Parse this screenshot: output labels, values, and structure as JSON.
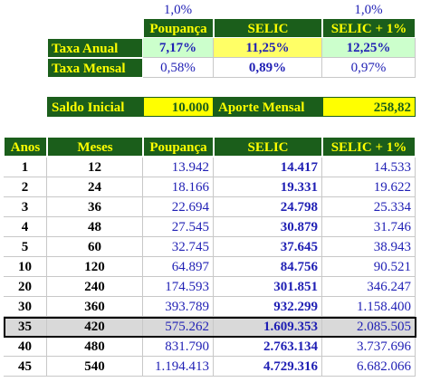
{
  "rates": {
    "percents": [
      "1,0%",
      "1,0%"
    ],
    "headers": [
      "Poupança",
      "SELIC",
      "SELIC + 1%"
    ],
    "taxa_anual_label": "Taxa Anual",
    "taxa_anual": [
      "7,17%",
      "11,25%",
      "12,25%"
    ],
    "taxa_mensal_label": "Taxa Mensal",
    "taxa_mensal": [
      "0,58%",
      "0,89%",
      "0,97%"
    ]
  },
  "inputs": {
    "saldo_inicial_label": "Saldo Inicial",
    "saldo_inicial": "10.000",
    "aporte_mensal_label": "Aporte Mensal",
    "aporte_mensal": "258,82"
  },
  "table": {
    "headers": [
      "Anos",
      "Meses",
      "Poupança",
      "SELIC",
      "SELIC + 1%"
    ],
    "rows": [
      [
        "1",
        "12",
        "13.942",
        "14.417",
        "14.533"
      ],
      [
        "2",
        "24",
        "18.166",
        "19.331",
        "19.622"
      ],
      [
        "3",
        "36",
        "22.694",
        "24.798",
        "25.334"
      ],
      [
        "4",
        "48",
        "27.545",
        "30.879",
        "31.746"
      ],
      [
        "5",
        "60",
        "32.745",
        "37.645",
        "38.943"
      ],
      [
        "10",
        "120",
        "64.897",
        "84.756",
        "90.521"
      ],
      [
        "20",
        "240",
        "174.593",
        "301.851",
        "346.247"
      ],
      [
        "30",
        "360",
        "393.789",
        "932.299",
        "1.158.400"
      ],
      [
        "35",
        "420",
        "575.262",
        "1.609.353",
        "2.085.505"
      ],
      [
        "40",
        "480",
        "831.790",
        "2.763.134",
        "3.737.696"
      ],
      [
        "45",
        "540",
        "1.194.413",
        "4.729.316",
        "6.682.066"
      ]
    ]
  },
  "colors": {
    "header_green": "#1b5e1b",
    "header_text": "#ffff00",
    "input_yellow": "#ffff00",
    "value_blue": "#1f1fb4",
    "highlight_row": "#d9d9d9"
  }
}
